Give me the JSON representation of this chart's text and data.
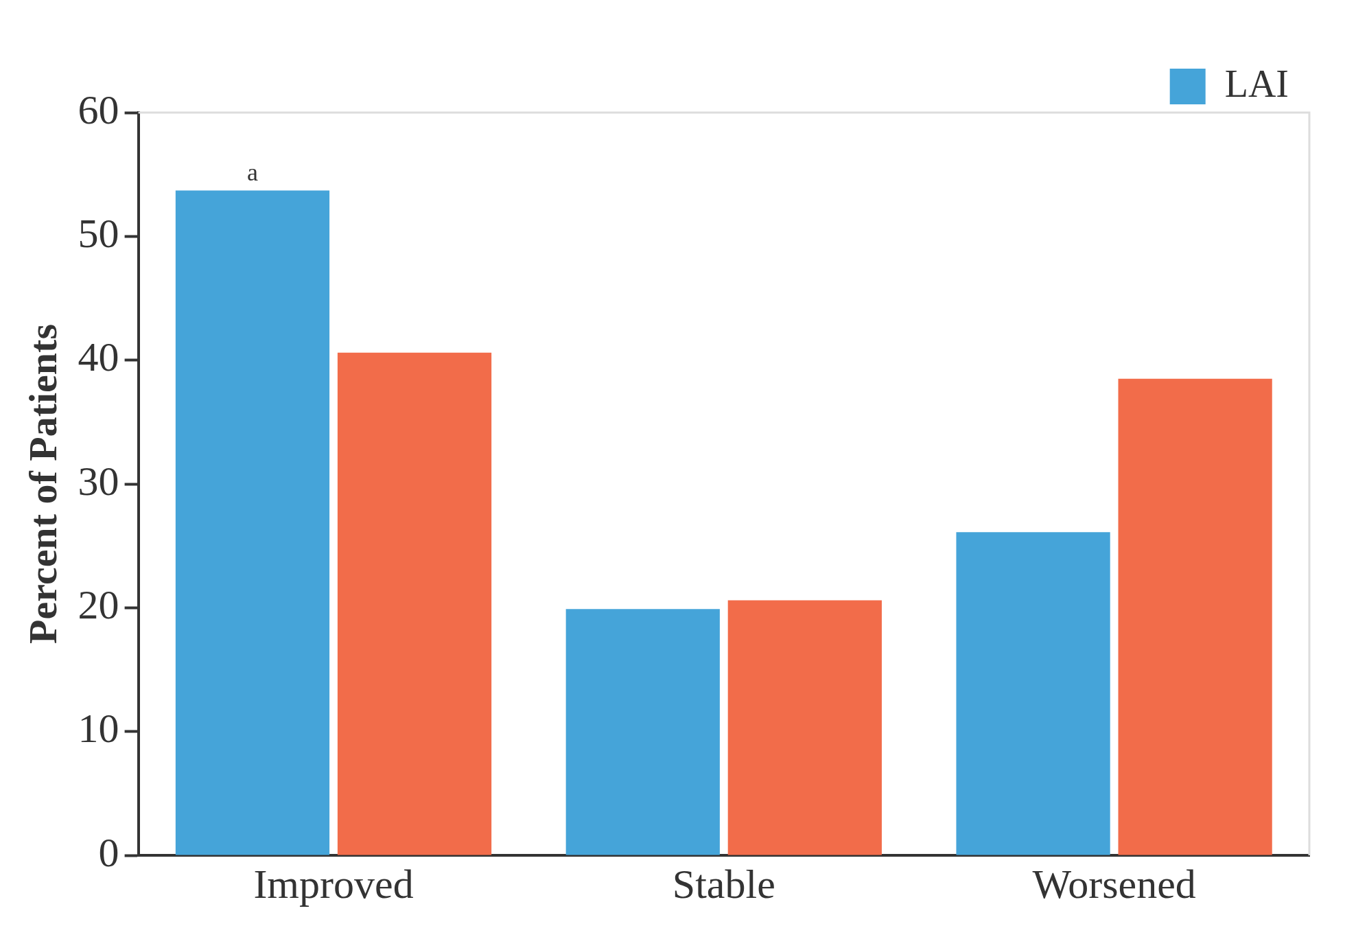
{
  "chart_data": {
    "type": "bar",
    "ylabel": "Percent of Patients",
    "categories": [
      "Improved",
      "Stable",
      "Worsened"
    ],
    "series": [
      {
        "name": "LAI",
        "color": "#45a4d9",
        "values": [
          53.7,
          19.9,
          26.1
        ]
      },
      {
        "color": "#f26c4a",
        "values": [
          40.6,
          20.6,
          38.5
        ]
      }
    ],
    "ylim": [
      0,
      60
    ],
    "yticks": [
      0,
      10,
      20,
      30,
      40,
      50,
      60
    ],
    "grid": false,
    "legend": "top right",
    "annotations": [
      "a"
    ]
  }
}
